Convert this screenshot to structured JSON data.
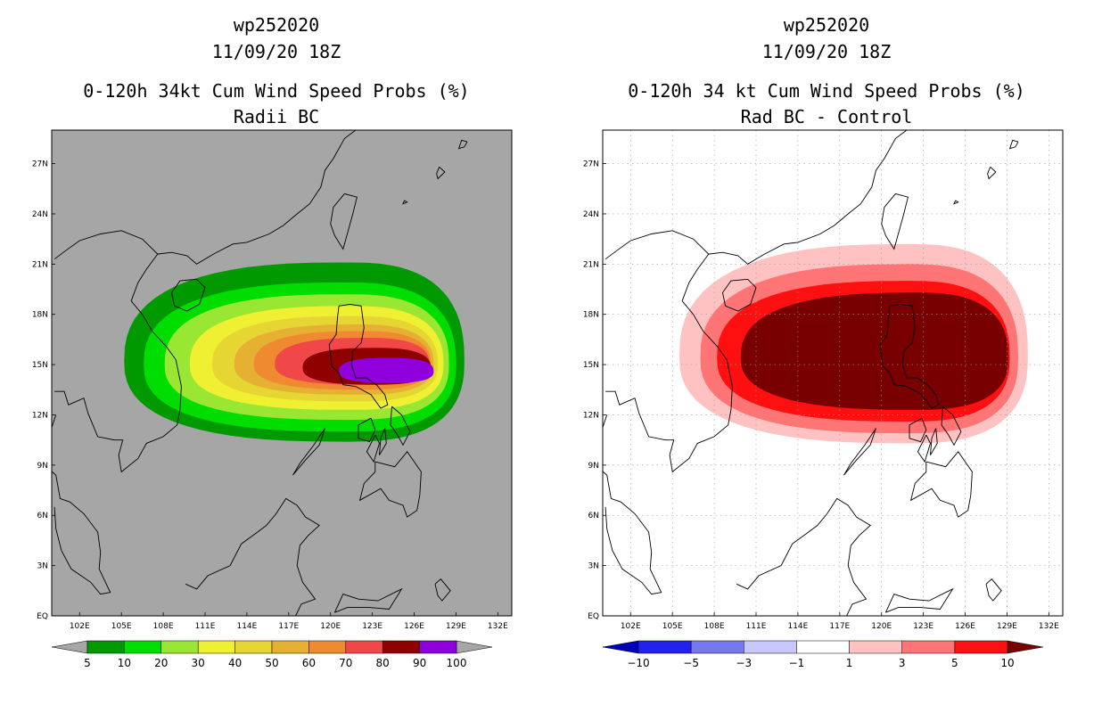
{
  "chart_data": [
    {
      "type": "heatmap",
      "storm_id": "wp252020",
      "datetime": "11/09/20 18Z",
      "title": "0-120h 34kt Cum Wind Speed Probs (%)",
      "subtitle": "Radii BC",
      "x_ticks": [
        "102E",
        "105E",
        "108E",
        "111E",
        "114E",
        "117E",
        "120E",
        "123E",
        "126E",
        "129E",
        "132E"
      ],
      "y_ticks": [
        "EQ",
        "3N",
        "6N",
        "9N",
        "12N",
        "15N",
        "18N",
        "21N",
        "24N",
        "27N"
      ],
      "xlim": [
        100,
        133
      ],
      "ylim": [
        0,
        29
      ],
      "levels": [
        "5",
        "10",
        "20",
        "30",
        "40",
        "50",
        "60",
        "70",
        "80",
        "90",
        "100"
      ],
      "colors": [
        "#009900",
        "#00dd00",
        "#99e633",
        "#f0f033",
        "#e6d633",
        "#e6b033",
        "#ef8a30",
        "#f04848",
        "#8f0000",
        "#8f00dd"
      ],
      "background": "#a6a6a6"
    },
    {
      "type": "heatmap",
      "storm_id": "wp252020",
      "datetime": "11/09/20 18Z",
      "title": "0-120h 34 kt Cum Wind Speed Probs (%)",
      "subtitle": "Rad BC - Control",
      "x_ticks": [
        "102E",
        "105E",
        "108E",
        "111E",
        "114E",
        "117E",
        "120E",
        "123E",
        "126E",
        "129E",
        "132E"
      ],
      "y_ticks": [
        "EQ",
        "3N",
        "6N",
        "9N",
        "12N",
        "15N",
        "18N",
        "21N",
        "24N",
        "27N"
      ],
      "xlim": [
        100,
        133
      ],
      "ylim": [
        0,
        29
      ],
      "levels": [
        "-10",
        "-5",
        "-3",
        "-1",
        "1",
        "3",
        "5",
        "10"
      ],
      "colors": [
        "#0000b8",
        "#2222ee",
        "#7777ee",
        "#c8c8ff",
        "#ffffff",
        "#ffc2c2",
        "#ff7474",
        "#ff1010",
        "#780000"
      ],
      "background": "#ffffff"
    }
  ]
}
